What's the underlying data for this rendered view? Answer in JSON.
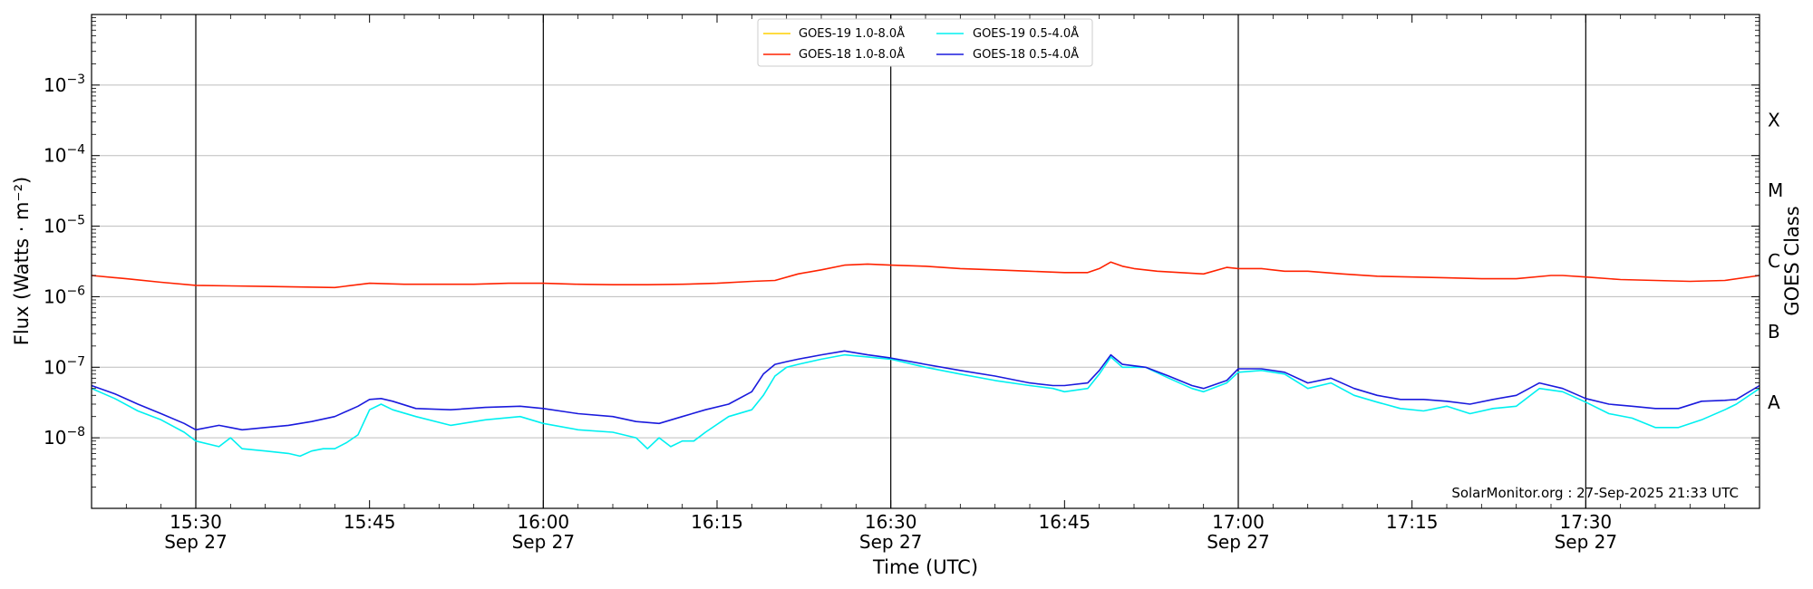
{
  "chart_data": {
    "type": "line",
    "xlabel": "Time (UTC)",
    "ylabel": "Flux (Watts · m⁻²)",
    "y2label": "GOES Class",
    "yscale": "log",
    "ylim": [
      1e-09,
      0.01
    ],
    "xlim": [
      "15:21",
      "17:45"
    ],
    "grid": "horizontal at decades",
    "legend_position": "top-center",
    "credit": "SolarMonitor.org : 27-Sep-2025 21:33 UTC",
    "x_ticks": [
      {
        "time": "15:30",
        "label": "15:30",
        "sublabel": "Sep 27"
      },
      {
        "time": "15:45",
        "label": "15:45",
        "sublabel": ""
      },
      {
        "time": "16:00",
        "label": "16:00",
        "sublabel": "Sep 27"
      },
      {
        "time": "16:15",
        "label": "16:15",
        "sublabel": ""
      },
      {
        "time": "16:30",
        "label": "16:30",
        "sublabel": "Sep 27"
      },
      {
        "time": "16:45",
        "label": "16:45",
        "sublabel": ""
      },
      {
        "time": "17:00",
        "label": "17:00",
        "sublabel": "Sep 27"
      },
      {
        "time": "17:15",
        "label": "17:15",
        "sublabel": ""
      },
      {
        "time": "17:30",
        "label": "17:30",
        "sublabel": "Sep 27"
      }
    ],
    "vlines": [
      "15:30",
      "16:00",
      "16:30",
      "17:00",
      "17:30"
    ],
    "y_ticks": [
      {
        "value": 1e-08,
        "base": "10",
        "exp": "−8"
      },
      {
        "value": 1e-07,
        "base": "10",
        "exp": "−7"
      },
      {
        "value": 1e-06,
        "base": "10",
        "exp": "−6"
      },
      {
        "value": 1e-05,
        "base": "10",
        "exp": "−5"
      },
      {
        "value": 0.0001,
        "base": "10",
        "exp": "−4"
      },
      {
        "value": 0.001,
        "base": "10",
        "exp": "−3"
      }
    ],
    "goes_classes": [
      {
        "label": "A",
        "value": 3.2e-08
      },
      {
        "label": "B",
        "value": 3.2e-07
      },
      {
        "label": "C",
        "value": 3.2e-06
      },
      {
        "label": "M",
        "value": 3.2e-05
      },
      {
        "label": "X",
        "value": 0.00032
      }
    ],
    "series": [
      {
        "name": "GOES-19 1.0-8.0Å",
        "color": "#ffd000",
        "x": [],
        "values": []
      },
      {
        "name": "GOES-18 1.0-8.0Å",
        "color": "#ff2200",
        "x": [
          "15:21",
          "15:24",
          "15:27",
          "15:30",
          "15:36",
          "15:42",
          "15:45",
          "15:48",
          "15:54",
          "15:57",
          "16:00",
          "16:03",
          "16:06",
          "16:09",
          "16:12",
          "16:15",
          "16:18",
          "16:20",
          "16:22",
          "16:24",
          "16:26",
          "16:28",
          "16:30",
          "16:33",
          "16:36",
          "16:39",
          "16:42",
          "16:45",
          "16:47",
          "16:48",
          "16:49",
          "16:50",
          "16:51",
          "16:53",
          "16:55",
          "16:57",
          "16:59",
          "17:00",
          "17:02",
          "17:04",
          "17:06",
          "17:09",
          "17:12",
          "17:15",
          "17:18",
          "17:21",
          "17:24",
          "17:27",
          "17:28",
          "17:30",
          "17:33",
          "17:36",
          "17:39",
          "17:42",
          "17:45"
        ],
        "values": [
          2e-06,
          1.8e-06,
          1.6e-06,
          1.45e-06,
          1.4e-06,
          1.35e-06,
          1.55e-06,
          1.5e-06,
          1.5e-06,
          1.55e-06,
          1.55e-06,
          1.5e-06,
          1.48e-06,
          1.48e-06,
          1.5e-06,
          1.55e-06,
          1.65e-06,
          1.7e-06,
          2.1e-06,
          2.4e-06,
          2.8e-06,
          2.9e-06,
          2.8e-06,
          2.7e-06,
          2.5e-06,
          2.4e-06,
          2.3e-06,
          2.2e-06,
          2.2e-06,
          2.5e-06,
          3.1e-06,
          2.7e-06,
          2.5e-06,
          2.3e-06,
          2.2e-06,
          2.1e-06,
          2.6e-06,
          2.5e-06,
          2.5e-06,
          2.3e-06,
          2.3e-06,
          2.1e-06,
          1.95e-06,
          1.9e-06,
          1.85e-06,
          1.8e-06,
          1.8e-06,
          2e-06,
          2e-06,
          1.9e-06,
          1.75e-06,
          1.7e-06,
          1.65e-06,
          1.7e-06,
          2e-06
        ]
      },
      {
        "name": "GOES-19 0.5-4.0Å",
        "color": "#00f0f0",
        "x": [
          "15:21",
          "15:23",
          "15:25",
          "15:27",
          "15:29",
          "15:30",
          "15:32",
          "15:33",
          "15:34",
          "15:36",
          "15:38",
          "15:39",
          "15:40",
          "15:41",
          "15:42",
          "15:43",
          "15:44",
          "15:45",
          "15:46",
          "15:47",
          "15:49",
          "15:52",
          "15:55",
          "15:58",
          "16:00",
          "16:03",
          "16:06",
          "16:08",
          "16:09",
          "16:10",
          "16:11",
          "16:12",
          "16:13",
          "16:14",
          "16:16",
          "16:18",
          "16:19",
          "16:20",
          "16:21",
          "16:22",
          "16:24",
          "16:26",
          "16:28",
          "16:30",
          "16:33",
          "16:36",
          "16:39",
          "16:42",
          "16:44",
          "16:45",
          "16:47",
          "16:48",
          "16:49",
          "16:50",
          "16:52",
          "16:54",
          "16:56",
          "16:57",
          "16:59",
          "17:00",
          "17:02",
          "17:04",
          "17:06",
          "17:08",
          "17:10",
          "17:12",
          "17:14",
          "17:16",
          "17:18",
          "17:20",
          "17:22",
          "17:24",
          "17:26",
          "17:28",
          "17:30",
          "17:32",
          "17:34",
          "17:36",
          "17:38",
          "17:40",
          "17:42",
          "17:43",
          "17:45"
        ],
        "values": [
          5e-08,
          3.6e-08,
          2.4e-08,
          1.8e-08,
          1.2e-08,
          9e-09,
          7.5e-09,
          1e-08,
          7e-09,
          6.5e-09,
          6e-09,
          5.5e-09,
          6.5e-09,
          7e-09,
          7e-09,
          8.5e-09,
          1.1e-08,
          2.5e-08,
          3e-08,
          2.5e-08,
          2e-08,
          1.5e-08,
          1.8e-08,
          2e-08,
          1.6e-08,
          1.3e-08,
          1.2e-08,
          1e-08,
          7e-09,
          1e-08,
          7.5e-09,
          9e-09,
          9e-09,
          1.2e-08,
          2e-08,
          2.5e-08,
          4e-08,
          7.5e-08,
          1e-07,
          1.1e-07,
          1.3e-07,
          1.5e-07,
          1.4e-07,
          1.3e-07,
          1e-07,
          8e-08,
          6.5e-08,
          5.5e-08,
          5e-08,
          4.5e-08,
          5e-08,
          8e-08,
          1.4e-07,
          1e-07,
          1e-07,
          7e-08,
          5e-08,
          4.5e-08,
          6e-08,
          8.5e-08,
          9e-08,
          8e-08,
          5e-08,
          6e-08,
          4e-08,
          3.2e-08,
          2.6e-08,
          2.4e-08,
          2.8e-08,
          2.2e-08,
          2.6e-08,
          2.8e-08,
          5e-08,
          4.5e-08,
          3.2e-08,
          2.2e-08,
          1.9e-08,
          1.4e-08,
          1.4e-08,
          1.8e-08,
          2.5e-08,
          3e-08,
          5e-08
        ]
      },
      {
        "name": "GOES-18 0.5-4.0Å",
        "color": "#1a1add",
        "x": [
          "15:21",
          "15:23",
          "15:25",
          "15:27",
          "15:29",
          "15:30",
          "15:32",
          "15:33",
          "15:34",
          "15:36",
          "15:38",
          "15:40",
          "15:42",
          "15:44",
          "15:45",
          "15:46",
          "15:47",
          "15:49",
          "15:52",
          "15:55",
          "15:58",
          "16:00",
          "16:03",
          "16:06",
          "16:08",
          "16:10",
          "16:12",
          "16:14",
          "16:16",
          "16:18",
          "16:19",
          "16:20",
          "16:21",
          "16:22",
          "16:24",
          "16:26",
          "16:28",
          "16:30",
          "16:33",
          "16:36",
          "16:39",
          "16:42",
          "16:44",
          "16:45",
          "16:47",
          "16:48",
          "16:49",
          "16:50",
          "16:52",
          "16:54",
          "16:56",
          "16:57",
          "16:59",
          "17:00",
          "17:02",
          "17:04",
          "17:06",
          "17:08",
          "17:10",
          "17:12",
          "17:14",
          "17:16",
          "17:18",
          "17:20",
          "17:22",
          "17:24",
          "17:26",
          "17:28",
          "17:30",
          "17:32",
          "17:34",
          "17:36",
          "17:38",
          "17:40",
          "17:42",
          "17:43",
          "17:45"
        ],
        "values": [
          5.5e-08,
          4.2e-08,
          3e-08,
          2.2e-08,
          1.6e-08,
          1.3e-08,
          1.5e-08,
          1.4e-08,
          1.3e-08,
          1.4e-08,
          1.5e-08,
          1.7e-08,
          2e-08,
          2.8e-08,
          3.5e-08,
          3.6e-08,
          3.3e-08,
          2.6e-08,
          2.5e-08,
          2.7e-08,
          2.8e-08,
          2.6e-08,
          2.2e-08,
          2e-08,
          1.7e-08,
          1.6e-08,
          2e-08,
          2.5e-08,
          3e-08,
          4.5e-08,
          8e-08,
          1.1e-07,
          1.2e-07,
          1.3e-07,
          1.5e-07,
          1.7e-07,
          1.5e-07,
          1.35e-07,
          1.1e-07,
          9e-08,
          7.5e-08,
          6e-08,
          5.5e-08,
          5.5e-08,
          6e-08,
          9e-08,
          1.5e-07,
          1.1e-07,
          1e-07,
          7.5e-08,
          5.5e-08,
          5e-08,
          6.5e-08,
          9.5e-08,
          9.5e-08,
          8.5e-08,
          6e-08,
          7e-08,
          5e-08,
          4e-08,
          3.5e-08,
          3.5e-08,
          3.3e-08,
          3e-08,
          3.5e-08,
          4e-08,
          6e-08,
          5e-08,
          3.6e-08,
          3e-08,
          2.8e-08,
          2.6e-08,
          2.6e-08,
          3.3e-08,
          3.4e-08,
          3.5e-08,
          5.5e-08
        ]
      }
    ]
  }
}
